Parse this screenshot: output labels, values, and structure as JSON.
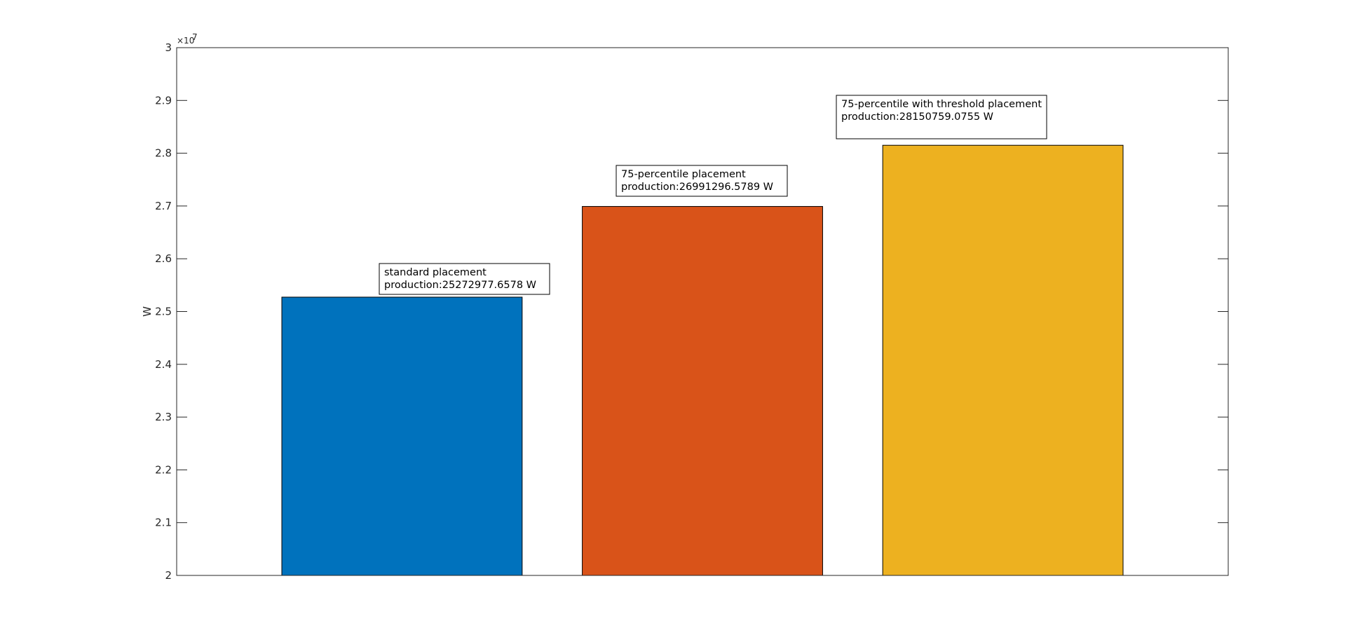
{
  "chart_data": {
    "type": "bar",
    "categories": [
      "standard placement",
      "75-percentile placement",
      "75-percentile with threshold placement"
    ],
    "values": [
      25272977.6578,
      26991296.5789,
      28150759.0755
    ],
    "colors": [
      "#0072BD",
      "#D95319",
      "#EDB120"
    ],
    "title": "",
    "xlabel": "",
    "ylabel": "W",
    "ylim": [
      20000000,
      30000000
    ],
    "yticks": [
      20000000,
      21000000,
      22000000,
      23000000,
      24000000,
      25000000,
      26000000,
      27000000,
      28000000,
      29000000,
      30000000
    ],
    "ytick_labels": [
      "2",
      "2.1",
      "2.2",
      "2.3",
      "2.4",
      "2.5",
      "2.6",
      "2.7",
      "2.8",
      "2.9",
      "3"
    ],
    "y_exponent": {
      "base": "×10",
      "power": "7"
    },
    "grid": false,
    "annotations": [
      {
        "line1": "standard placement",
        "line2": "production:25272977.6578 W"
      },
      {
        "line1": "75-percentile placement",
        "line2": "production:26991296.5789 W"
      },
      {
        "line1": "75-percentile with threshold placement",
        "line2": "production:28150759.0755 W"
      }
    ]
  }
}
